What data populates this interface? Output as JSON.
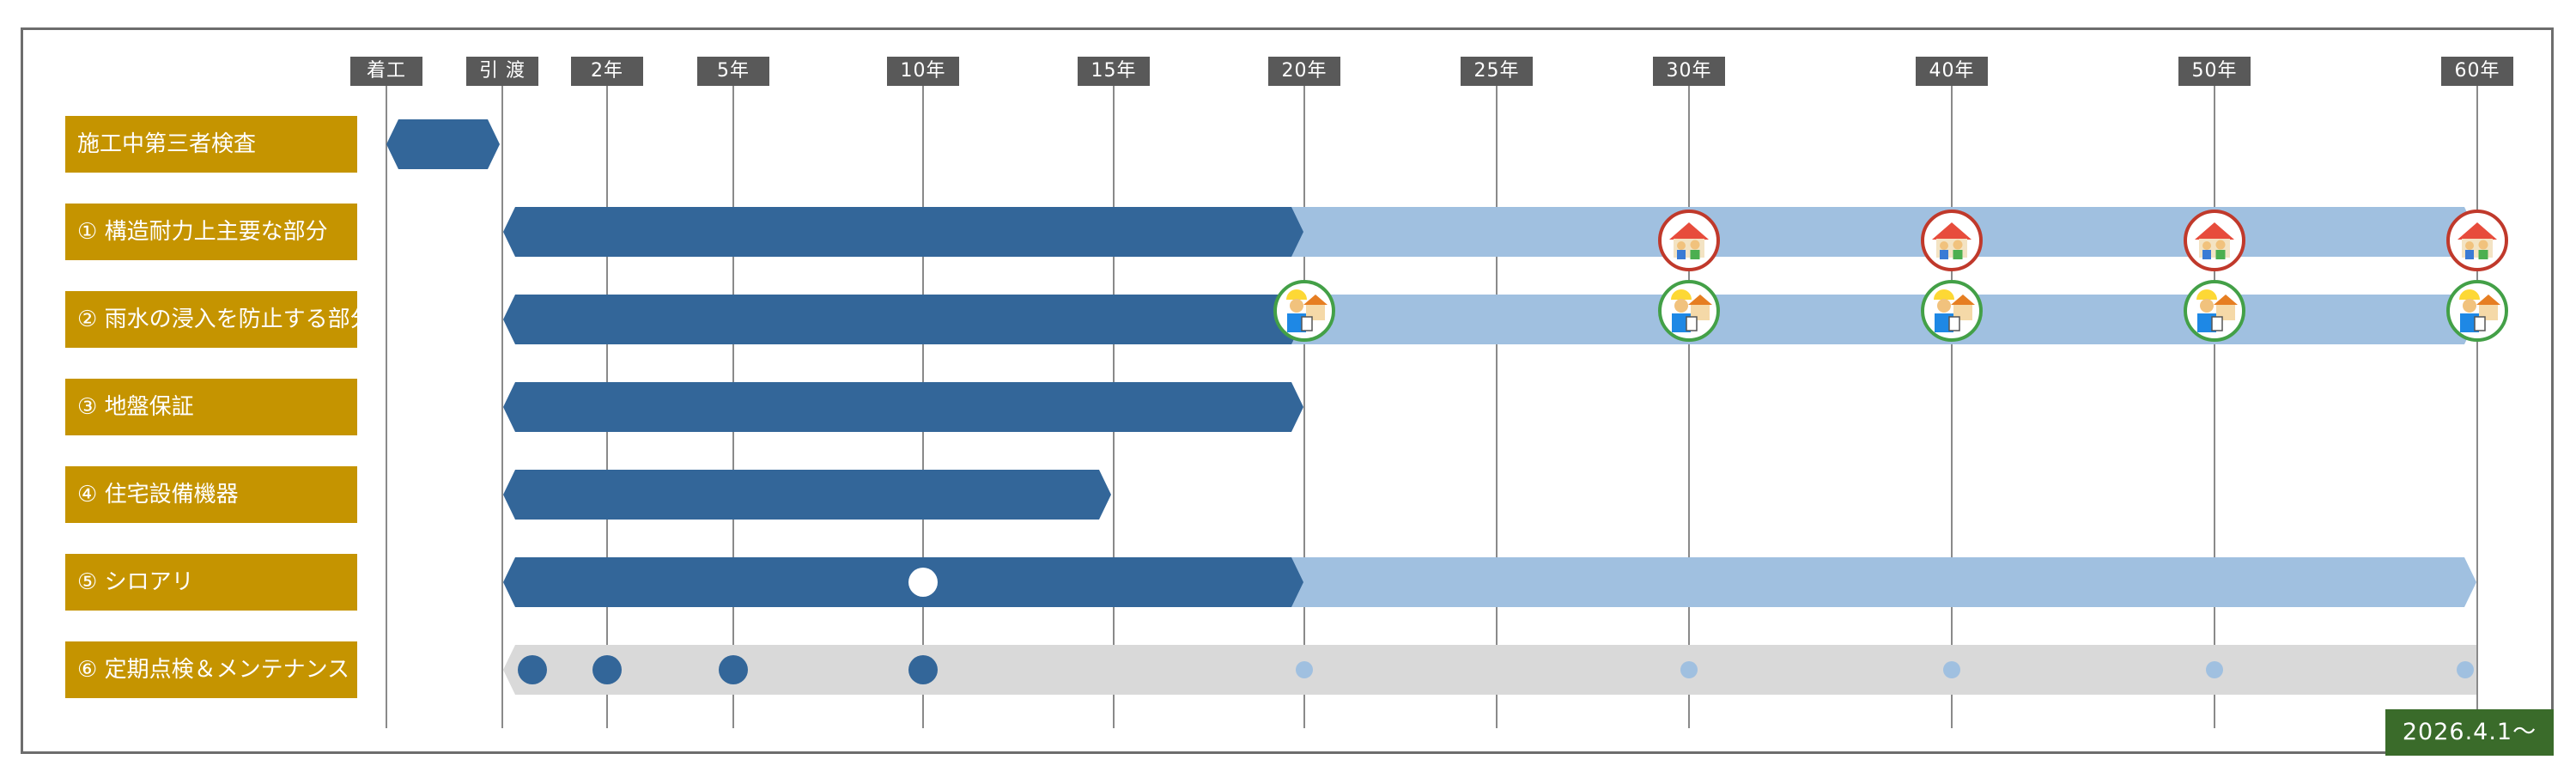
{
  "timeline": {
    "ticks": [
      "着工",
      "引 渡",
      "2年",
      "5年",
      "10年",
      "15年",
      "20年",
      "25年",
      "30年",
      "40年",
      "50年",
      "60年"
    ]
  },
  "rows": [
    "施工中第三者検査",
    "① 構造耐力上主要な部分",
    "② 雨水の浸入を防止する部分",
    "③ 地盤保証",
    "④ 住宅設備機器",
    "⑤ シロアリ",
    "⑥ 定期点検＆メンテナンス"
  ],
  "icons": {
    "family": "house-family-icon",
    "inspector": "inspector-house-icon"
  },
  "colors": {
    "label_bg": "#c59400",
    "dark_bar": "#336699",
    "light_bar": "#a0c0e0",
    "gray_bar": "#d9d9d9",
    "tick_bg": "#595959",
    "date_badge": "#3a6b2a"
  },
  "footer": {
    "start_date": "2026.4.1〜"
  }
}
